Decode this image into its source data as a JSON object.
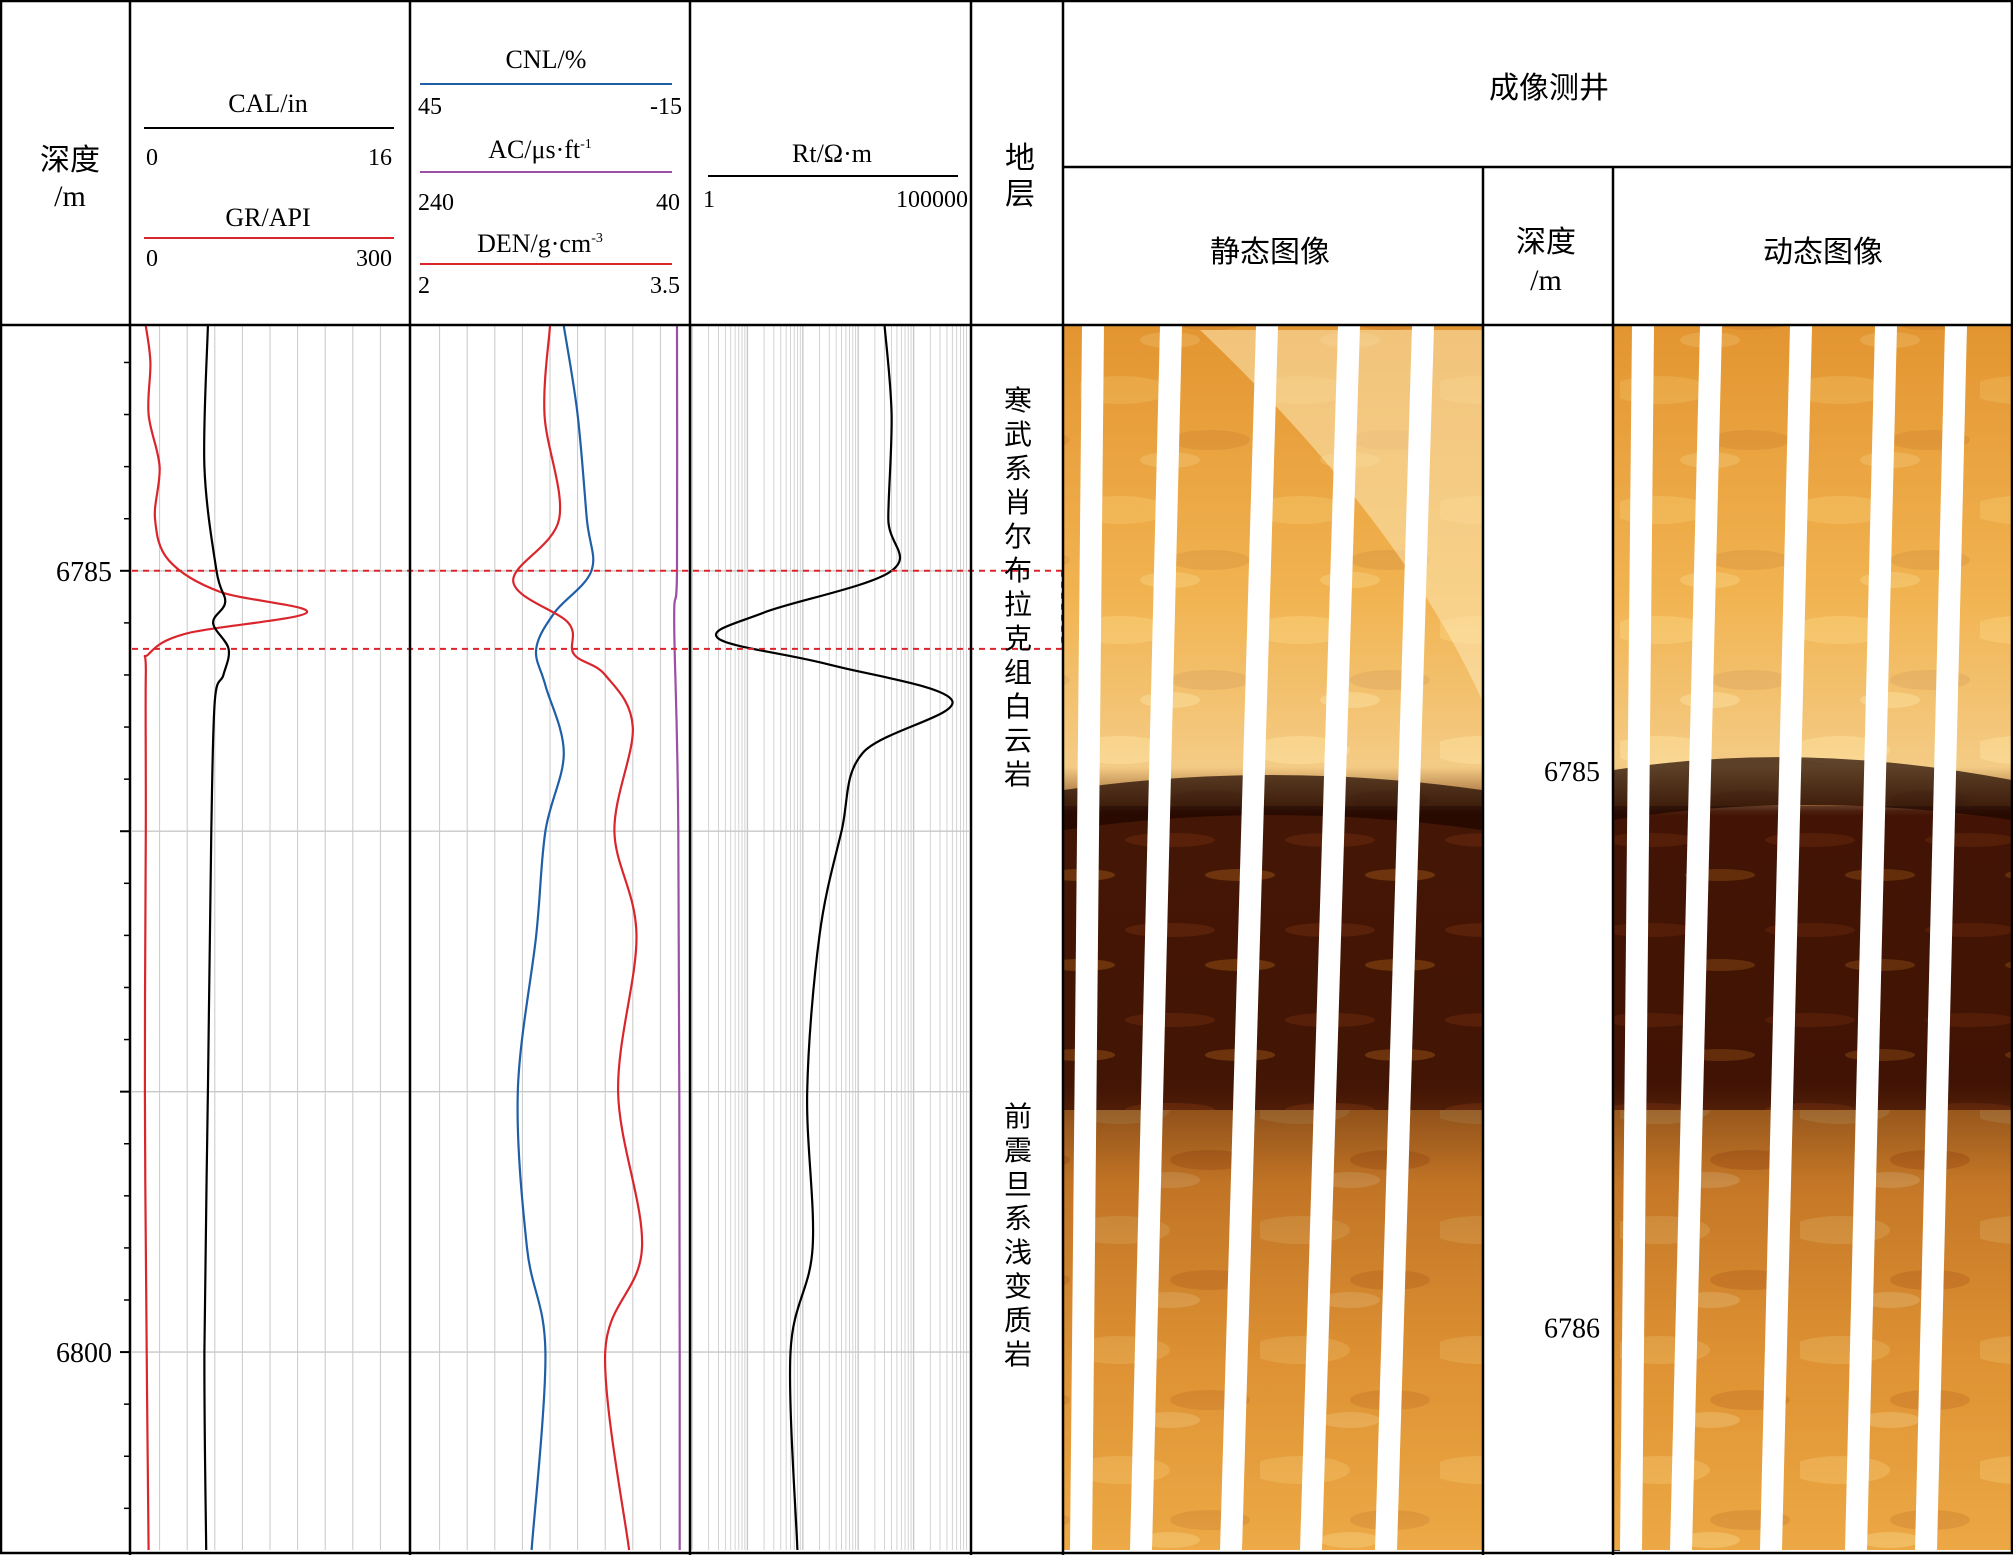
{
  "header": {
    "depth_label_1": "深度",
    "depth_label_2": "/m",
    "strata_label_1": "地",
    "strata_label_2": "层",
    "imaging_title": "成像测井",
    "static_image_label": "静态图像",
    "dynamic_image_label": "动态图像",
    "image_depth_label_1": "深度",
    "image_depth_label_2": "/m"
  },
  "tracks": {
    "track1": {
      "curves": [
        {
          "name": "CAL/in",
          "min": "0",
          "max": "16",
          "color": "#000000"
        },
        {
          "name": "GR/API",
          "min": "0",
          "max": "300",
          "color": "#d9262c"
        }
      ]
    },
    "track2": {
      "curves": [
        {
          "name": "CNL/%",
          "min": "45",
          "max": "-15",
          "color": "#1f5fa8"
        },
        {
          "name": "AC/μs·ft",
          "sup": "-1",
          "min": "240",
          "max": "40",
          "color": "#9b4fa5"
        },
        {
          "name": "DEN/g·cm",
          "sup": "-3",
          "min": "2",
          "max": "3.5",
          "color": "#d9262c"
        }
      ]
    },
    "track3": {
      "curves": [
        {
          "name": "Rt/Ω·m",
          "min": "1",
          "max": "100000",
          "color": "#000000"
        }
      ]
    }
  },
  "depth_ticks": [
    "6785",
    "6800"
  ],
  "image_depth_ticks": [
    "6785",
    "6786"
  ],
  "strata": {
    "upper": "寒武系肖尔布拉克组白云岩",
    "lower": "前震旦系浅变质岩"
  },
  "colors": {
    "grid": "#c8c8c8",
    "border": "#000000",
    "highlight": "#d9262c",
    "image_light": "#f4b54e",
    "image_dark": "#3a0f02",
    "image_gap": "#ffffff"
  },
  "chart_data": {
    "type": "line",
    "depth_range_m": [
      6780.3,
      6803.8
    ],
    "highlight_interval_m": [
      6785.0,
      6786.5
    ],
    "image_depth_range_m": [
      6784.2,
      6786.4
    ],
    "series": [
      {
        "name": "GR",
        "unit": "API",
        "scale": [
          0,
          300
        ],
        "depth": [
          6780.3,
          6781.0,
          6782.0,
          6783.0,
          6784.0,
          6784.8,
          6785.4,
          6785.8,
          6786.2,
          6786.6,
          6787.0,
          6790,
          6795,
          6800,
          6803.8
        ],
        "values": [
          15,
          20,
          18,
          30,
          25,
          40,
          95,
          190,
          60,
          18,
          15,
          15,
          14,
          16,
          18
        ]
      },
      {
        "name": "CAL",
        "unit": "in",
        "scale": [
          0,
          16
        ],
        "depth": [
          6780.3,
          6783.0,
          6785.0,
          6785.6,
          6786.0,
          6786.5,
          6787.0,
          6787.5,
          6790,
          6795,
          6800,
          6803.8
        ],
        "values": [
          4.4,
          4.2,
          4.9,
          5.4,
          4.7,
          5.6,
          5.3,
          4.8,
          4.6,
          4.4,
          4.2,
          4.3
        ]
      },
      {
        "name": "CNL",
        "unit": "%",
        "scale": [
          45,
          -15
        ],
        "depth": [
          6780.3,
          6782,
          6784,
          6785,
          6785.8,
          6786.5,
          6787.2,
          6788.5,
          6790,
          6792,
          6795,
          6798,
          6800,
          6803.8
        ],
        "values": [
          12,
          9,
          7,
          6,
          14,
          18,
          16,
          12,
          16,
          18,
          22,
          20,
          16,
          19
        ]
      },
      {
        "name": "AC",
        "unit": "μs/ft",
        "scale": [
          240,
          40
        ],
        "depth": [
          6780.3,
          6785,
          6786,
          6790,
          6800,
          6803.8
        ],
        "values": [
          48,
          48,
          50,
          47,
          46,
          46
        ]
      },
      {
        "name": "DEN",
        "unit": "g/cm3",
        "scale": [
          2,
          3.5
        ],
        "depth": [
          6780.3,
          6782,
          6784,
          6785.2,
          6786.0,
          6786.6,
          6787.0,
          6788,
          6790,
          6792,
          6795,
          6798,
          6800,
          6803.8
        ],
        "values": [
          2.75,
          2.72,
          2.8,
          2.55,
          2.85,
          2.88,
          3.05,
          3.2,
          3.1,
          3.22,
          3.12,
          3.25,
          3.05,
          3.18
        ]
      },
      {
        "name": "Rt",
        "unit": "Ω·m",
        "scale_log": [
          1,
          100000
        ],
        "depth": [
          6780.3,
          6782,
          6784,
          6785,
          6785.8,
          6786.3,
          6786.8,
          6787.5,
          6788.5,
          6790,
          6792,
          6795,
          6798,
          6800,
          6803.8
        ],
        "values": [
          3000,
          4000,
          3500,
          4000,
          20,
          3,
          300,
          50000,
          1200,
          500,
          200,
          120,
          150,
          60,
          80
        ]
      }
    ]
  }
}
